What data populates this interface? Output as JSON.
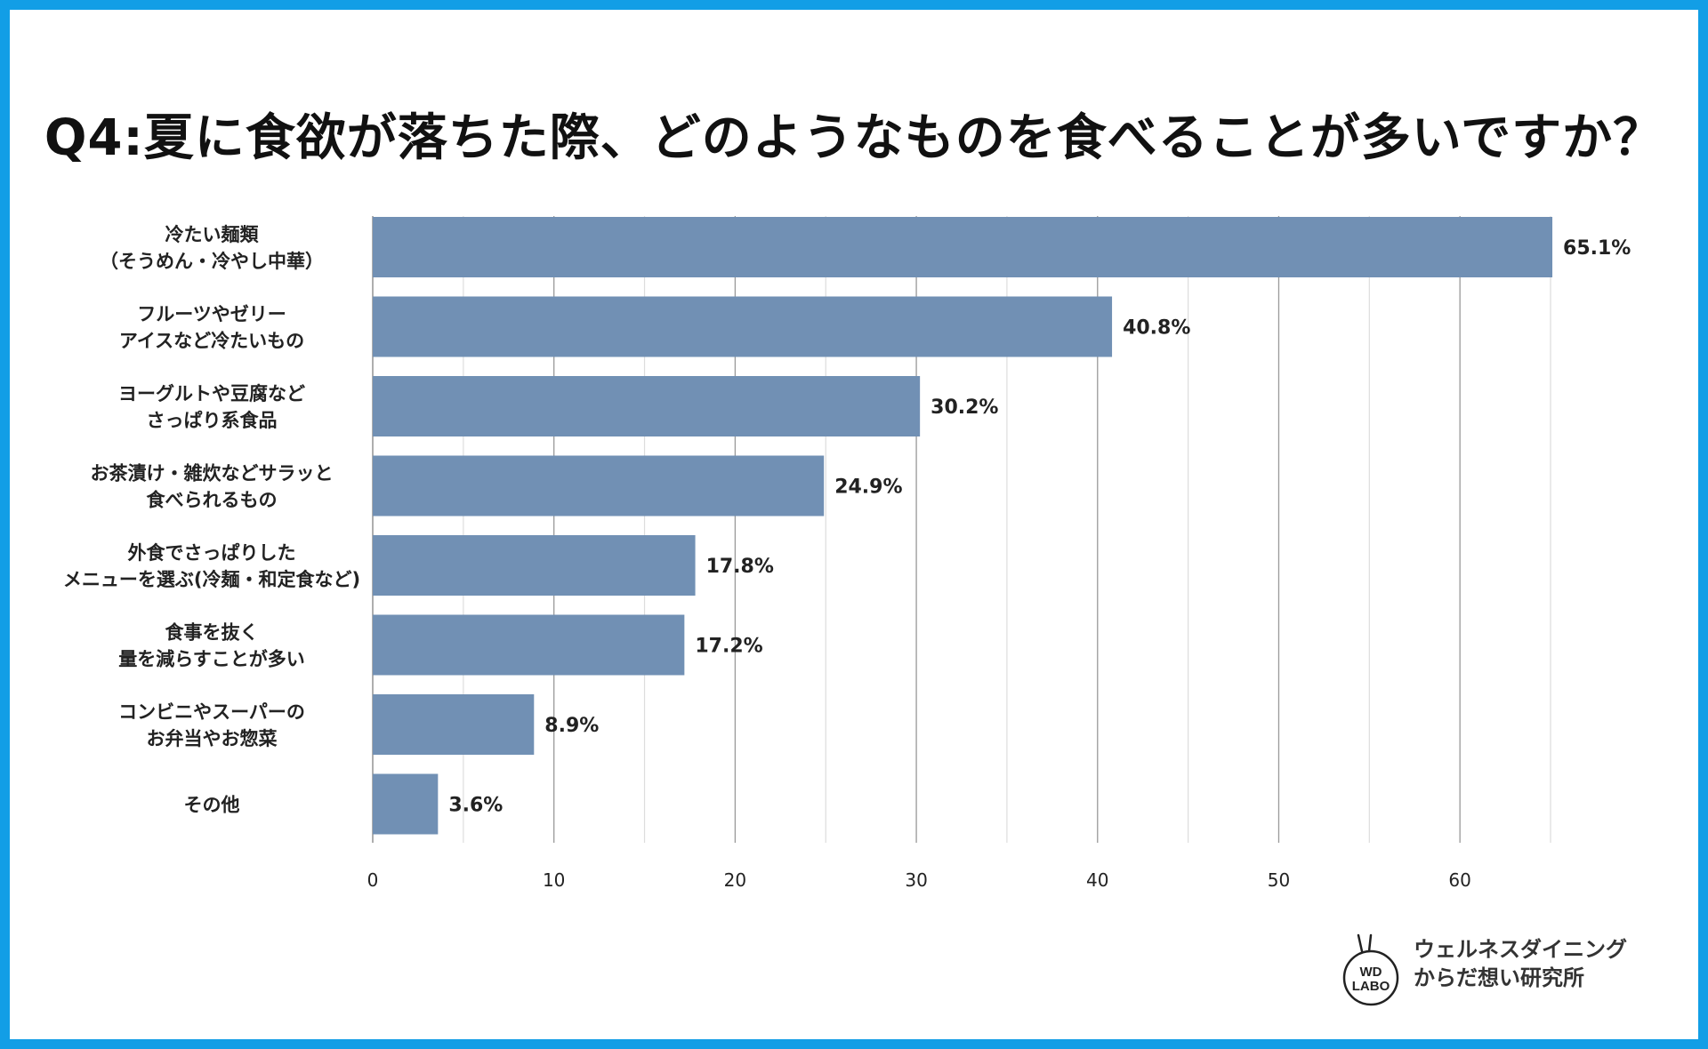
{
  "title": "Q4:夏に食欲が落ちた際、どのようなものを食べることが多いですか？",
  "chart_data": {
    "type": "bar",
    "orientation": "horizontal",
    "categories": [
      [
        "冷たい麺類",
        "（そうめん・冷やし中華）"
      ],
      [
        "フルーツやゼリー",
        "アイスなど冷たいもの"
      ],
      [
        "ヨーグルトや豆腐など",
        "さっぱり系食品"
      ],
      [
        "お茶漬け・雑炊などサラッと",
        "食べられるもの"
      ],
      [
        "外食でさっぱりした",
        "メニューを選ぶ(冷麺・和定食など)"
      ],
      [
        "食事を抜く",
        "量を減らすことが多い"
      ],
      [
        "コンビニやスーパーの",
        "お弁当やお惣菜"
      ],
      [
        "その他"
      ]
    ],
    "values": [
      65.1,
      40.8,
      30.2,
      24.9,
      17.8,
      17.2,
      8.9,
      3.6
    ],
    "value_labels": [
      "65.1%",
      "40.8%",
      "30.2%",
      "24.9%",
      "17.8%",
      "17.2%",
      "8.9%",
      "3.6%"
    ],
    "xlim": [
      0,
      65
    ],
    "x_ticks": [
      0,
      10,
      20,
      30,
      40,
      50,
      60
    ],
    "grid": true,
    "bar_color": "#7190b4",
    "grid_major_color": "#999999",
    "grid_minor_color": "#dddddd"
  },
  "brand": {
    "logo_text_top": "WD",
    "logo_text_bottom": "LABO",
    "line1": "ウェルネスダイニング",
    "line2": "からだ想い研究所"
  },
  "colors": {
    "border": "#129ee6"
  }
}
